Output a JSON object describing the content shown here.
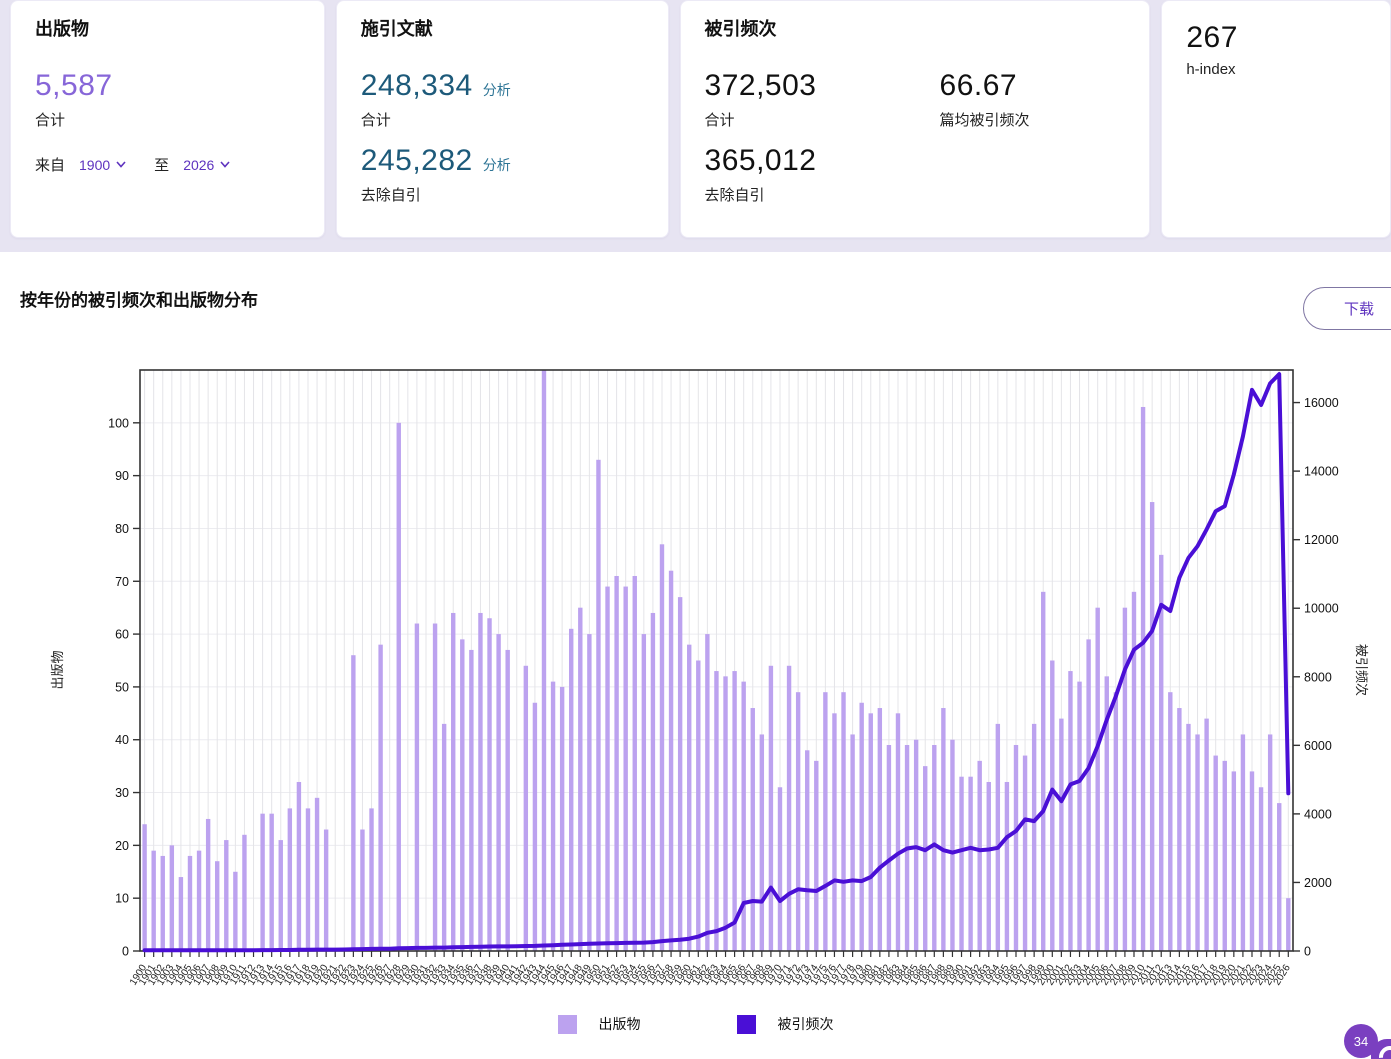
{
  "cards": {
    "publications": {
      "title": "出版物",
      "total": "5,587",
      "total_label": "合计",
      "from_label": "来自",
      "from_year": "1900",
      "to_label": "至",
      "to_year": "2026"
    },
    "citing_articles": {
      "title": "施引文献",
      "total": "248,334",
      "total_analyze_label": "分析",
      "total_label": "合计",
      "without_self": "245,282",
      "without_self_analyze_label": "分析",
      "without_self_label": "去除自引"
    },
    "times_cited": {
      "title": "被引频次",
      "total": "372,503",
      "total_label": "合计",
      "average": "66.67",
      "average_label": "篇均被引频次",
      "without_self": "365,012",
      "without_self_label": "去除自引"
    },
    "h_index": {
      "value": "267",
      "label": "h-index"
    }
  },
  "section": {
    "title": "按年份的被引频次和出版物分布",
    "download_label": "下载"
  },
  "legend": [
    {
      "label": "出版物",
      "color": "#bca2ef"
    },
    {
      "label": "被引频次",
      "color": "#4a0fd6"
    }
  ],
  "feedback_badge": "34",
  "chart_data": {
    "type": "bar+line",
    "title": "按年份的被引频次和出版物分布",
    "x": [
      1900,
      1901,
      1902,
      1903,
      1904,
      1905,
      1906,
      1907,
      1908,
      1909,
      1910,
      1911,
      1912,
      1913,
      1914,
      1915,
      1916,
      1917,
      1918,
      1919,
      1920,
      1921,
      1922,
      1923,
      1924,
      1925,
      1926,
      1927,
      1928,
      1929,
      1930,
      1931,
      1932,
      1933,
      1934,
      1935,
      1936,
      1937,
      1938,
      1939,
      1940,
      1941,
      1942,
      1943,
      1944,
      1945,
      1946,
      1947,
      1948,
      1949,
      1950,
      1951,
      1952,
      1953,
      1954,
      1955,
      1956,
      1957,
      1958,
      1959,
      1960,
      1961,
      1962,
      1963,
      1964,
      1965,
      1966,
      1967,
      1968,
      1969,
      1970,
      1971,
      1972,
      1973,
      1974,
      1975,
      1976,
      1977,
      1978,
      1979,
      1980,
      1981,
      1982,
      1983,
      1984,
      1985,
      1986,
      1987,
      1988,
      1989,
      1990,
      1991,
      1992,
      1993,
      1994,
      1995,
      1996,
      1997,
      1998,
      1999,
      2000,
      2001,
      2002,
      2003,
      2004,
      2005,
      2006,
      2007,
      2008,
      2009,
      2010,
      2011,
      2012,
      2013,
      2014,
      2015,
      2016,
      2017,
      2018,
      2019,
      2020,
      2021,
      2022,
      2023,
      2024,
      2025,
      2026
    ],
    "series": [
      {
        "name": "出版物",
        "type": "bar",
        "axis": "left",
        "color": "#bca2ef",
        "values": [
          24,
          19,
          18,
          20,
          14,
          18,
          19,
          25,
          17,
          21,
          15,
          22,
          0,
          26,
          26,
          21,
          27,
          32,
          27,
          29,
          23,
          0,
          0,
          56,
          23,
          27,
          58,
          0,
          100,
          0,
          62,
          0,
          62,
          43,
          64,
          59,
          57,
          64,
          63,
          60,
          57,
          0,
          54,
          47,
          110,
          51,
          50,
          61,
          65,
          60,
          93,
          69,
          71,
          69,
          71,
          60,
          64,
          77,
          72,
          67,
          58,
          55,
          60,
          53,
          52,
          53,
          51,
          46,
          41,
          54,
          31,
          54,
          49,
          38,
          36,
          49,
          45,
          49,
          41,
          47,
          45,
          46,
          39,
          45,
          39,
          40,
          35,
          39,
          46,
          40,
          33,
          33,
          36,
          32,
          43,
          32,
          39,
          37,
          43,
          68,
          55,
          44,
          53,
          51,
          59,
          65,
          52,
          49,
          65,
          68,
          103,
          85,
          75,
          49,
          46,
          43,
          41,
          44,
          37,
          36,
          34,
          41,
          34,
          31,
          41,
          28,
          10
        ]
      },
      {
        "name": "被引频次",
        "type": "line",
        "axis": "right",
        "color": "#4a0fd6",
        "values": [
          20,
          20,
          20,
          20,
          20,
          20,
          20,
          20,
          20,
          20,
          20,
          20,
          20,
          25,
          25,
          30,
          30,
          35,
          35,
          40,
          40,
          40,
          45,
          50,
          55,
          60,
          65,
          65,
          80,
          85,
          90,
          90,
          100,
          100,
          110,
          115,
          120,
          125,
          130,
          135,
          135,
          140,
          145,
          150,
          160,
          170,
          180,
          190,
          200,
          210,
          220,
          225,
          230,
          235,
          240,
          245,
          260,
          290,
          310,
          330,
          360,
          420,
          530,
          580,
          680,
          830,
          1400,
          1460,
          1440,
          1850,
          1460,
          1670,
          1800,
          1770,
          1750,
          1900,
          2060,
          2020,
          2060,
          2040,
          2160,
          2430,
          2640,
          2840,
          2990,
          3030,
          2940,
          3110,
          2940,
          2870,
          2940,
          3010,
          2940,
          2960,
          3010,
          3320,
          3500,
          3840,
          3790,
          4080,
          4710,
          4370,
          4860,
          4960,
          5340,
          5980,
          6750,
          7430,
          8210,
          8790,
          8990,
          9340,
          10100,
          9920,
          10890,
          11470,
          11810,
          12300,
          12830,
          12980,
          13900,
          15010,
          16370,
          15930,
          16560,
          16830,
          4600
        ]
      }
    ],
    "left_axis": {
      "label": "出版物",
      "min": 0,
      "max": 110,
      "ticks": [
        0,
        10,
        20,
        30,
        40,
        50,
        60,
        70,
        80,
        90,
        100
      ]
    },
    "right_axis": {
      "label": "被引频次",
      "min": 0,
      "max": 16950,
      "ticks": [
        0,
        2000,
        4000,
        6000,
        8000,
        10000,
        12000,
        14000,
        16000
      ]
    },
    "grid": true,
    "legend_position": "bottom"
  }
}
